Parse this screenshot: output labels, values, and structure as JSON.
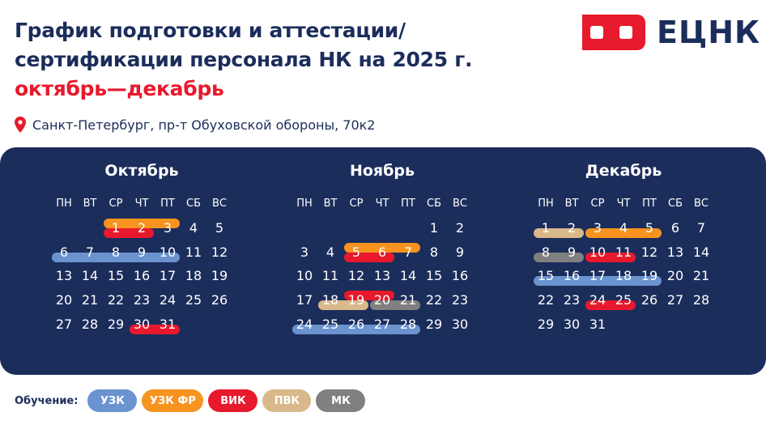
{
  "title": {
    "line1": "График подготовки и аттестации/",
    "line2": "сертификации персонала НК на 2025 г.",
    "line3": "октябрь—декабрь"
  },
  "address": "Санкт-Петербург, пр-т Обуховской обороны, 70к2",
  "logo": {
    "text": "ЕЦНК"
  },
  "weekdays": [
    "ПН",
    "ВТ",
    "СР",
    "ЧТ",
    "ПТ",
    "СБ",
    "ВС"
  ],
  "colors": {
    "navy": "#1b2d5b",
    "УЗК": "#6b93cf",
    "УЗК ФР": "#f7931e",
    "ВИК": "#e8192c",
    "ПВК": "#d9b88a",
    "МК": "#808080"
  },
  "months": [
    {
      "name": "Октябрь",
      "days": 31,
      "first_weekday": 3
    },
    {
      "name": "Ноябрь",
      "days": 30,
      "first_weekday": 6
    },
    {
      "name": "Декабрь",
      "days": 31,
      "first_weekday": 1
    }
  ],
  "trainings": [
    {
      "month": 0,
      "start": 1,
      "end": 3,
      "type": "УЗК ФР"
    },
    {
      "month": 0,
      "start": 1,
      "end": 2,
      "type": "ВИК"
    },
    {
      "month": 0,
      "start": 6,
      "end": 10,
      "type": "УЗК"
    },
    {
      "month": 0,
      "start": 30,
      "end": 31,
      "type": "ВИК"
    },
    {
      "month": 1,
      "start": 5,
      "end": 7,
      "type": "УЗК ФР"
    },
    {
      "month": 1,
      "start": 5,
      "end": 6,
      "type": "ВИК"
    },
    {
      "month": 1,
      "start": 19,
      "end": 20,
      "type": "ВИК"
    },
    {
      "month": 1,
      "start": 18,
      "end": 19,
      "type": "ПВК"
    },
    {
      "month": 1,
      "start": 20,
      "end": 21,
      "type": "МК"
    },
    {
      "month": 1,
      "start": 24,
      "end": 28,
      "type": "УЗК"
    },
    {
      "month": 2,
      "start": 1,
      "end": 2,
      "type": "ПВК"
    },
    {
      "month": 2,
      "start": 3,
      "end": 5,
      "type": "УЗК ФР"
    },
    {
      "month": 2,
      "start": 8,
      "end": 9,
      "type": "МК"
    },
    {
      "month": 2,
      "start": 10,
      "end": 11,
      "type": "ВИК"
    },
    {
      "month": 2,
      "start": 15,
      "end": 19,
      "type": "УЗК"
    },
    {
      "month": 2,
      "start": 24,
      "end": 25,
      "type": "ВИК"
    }
  ],
  "legend": {
    "label": "Обучение:",
    "items": [
      "УЗК",
      "УЗК ФР",
      "ВИК",
      "ПВК",
      "МК"
    ]
  }
}
